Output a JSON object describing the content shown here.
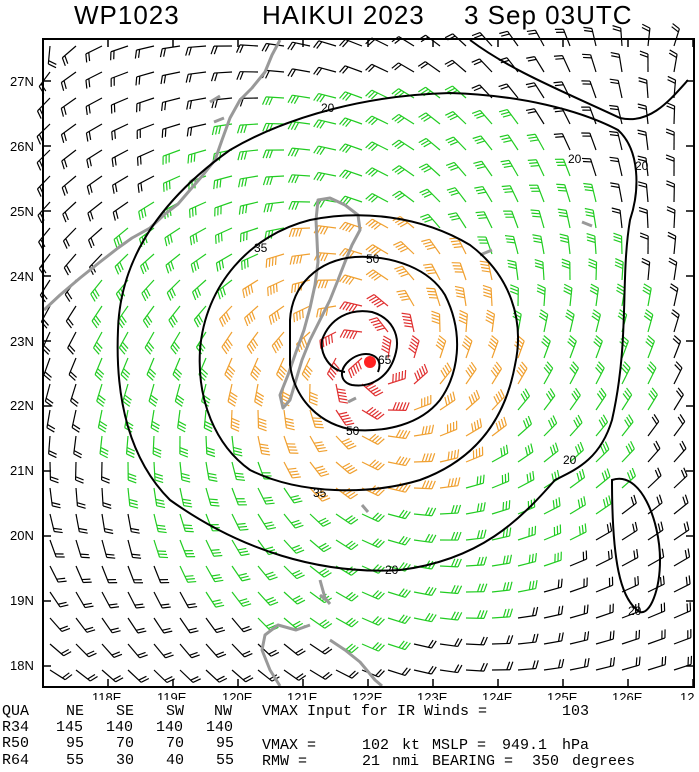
{
  "title": {
    "storm_id": "WP1023",
    "storm_name": "HAIKUI 2023",
    "datetime": "3 Sep 03UTC"
  },
  "map": {
    "lat_labels": [
      "27N",
      "26N",
      "25N",
      "24N",
      "23N",
      "22N",
      "21N",
      "20N",
      "19N",
      "18N"
    ],
    "lon_labels": [
      "118E",
      "119E",
      "120E",
      "121E",
      "122E",
      "123E",
      "124E",
      "125E",
      "126E",
      "12"
    ],
    "contour_labels": [
      "20",
      "20",
      "20",
      "20",
      "20",
      "20",
      "35",
      "35",
      "50",
      "50",
      "65"
    ],
    "colors": {
      "wind_lt34": "#000000",
      "wind_34_50": "#22cc22",
      "wind_50_64": "#f0a030",
      "wind_ge64": "#e03030",
      "coast": "#999999",
      "center": "#ff2222"
    },
    "barb_icons": "wind-barb-icon",
    "center_icon": "storm-center-icon"
  },
  "table": {
    "header": [
      "QUA",
      "NE",
      "SE",
      "SW",
      "NW"
    ],
    "rows": [
      {
        "label": "R34",
        "values": [
          "145",
          "140",
          "140",
          "140"
        ]
      },
      {
        "label": "R50",
        "values": [
          "95",
          "70",
          "70",
          "95"
        ]
      },
      {
        "label": "R64",
        "values": [
          "55",
          "30",
          "40",
          "55"
        ]
      }
    ],
    "vmax_input_text": "VMAX Input for IR Winds =",
    "vmax_input_value": "103",
    "vmax_text": "VMAX =",
    "vmax_value": "102",
    "vmax_unit": "kt",
    "mslp_text": "MSLP =",
    "mslp_value": "949.1",
    "mslp_unit": "hPa",
    "rmw_text": "RMW =",
    "rmw_value": "21",
    "rmw_unit": "nmi",
    "bearing_text": "BEARING =",
    "bearing_value": "350",
    "bearing_unit": "degrees"
  }
}
